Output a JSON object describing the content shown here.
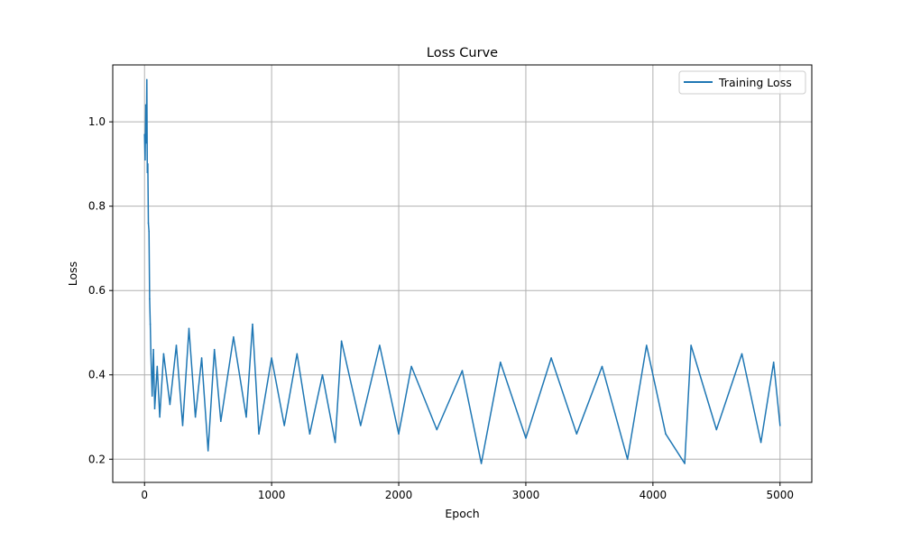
{
  "chart_data": {
    "type": "line",
    "title": "Loss Curve",
    "xlabel": "Epoch",
    "ylabel": "Loss",
    "xlim": [
      -250,
      5250
    ],
    "ylim": [
      0.145,
      1.135
    ],
    "xticks": [
      0,
      1000,
      2000,
      3000,
      4000,
      5000
    ],
    "xtick_labels": [
      "0",
      "1000",
      "2000",
      "3000",
      "4000",
      "5000"
    ],
    "yticks": [
      0.2,
      0.4,
      0.6,
      0.8,
      1.0
    ],
    "ytick_labels": [
      "0.2",
      "0.4",
      "0.6",
      "0.8",
      "1.0"
    ],
    "grid": true,
    "legend_position": "top-right",
    "series": [
      {
        "name": "Training Loss",
        "color": "#1f77b4",
        "points": [
          [
            0,
            0.97
          ],
          [
            5,
            0.91
          ],
          [
            10,
            1.04
          ],
          [
            14,
            0.95
          ],
          [
            18,
            1.1
          ],
          [
            22,
            0.88
          ],
          [
            26,
            0.9
          ],
          [
            30,
            0.76
          ],
          [
            35,
            0.74
          ],
          [
            40,
            0.58
          ],
          [
            45,
            0.52
          ],
          [
            50,
            0.45
          ],
          [
            60,
            0.35
          ],
          [
            70,
            0.46
          ],
          [
            80,
            0.32
          ],
          [
            100,
            0.42
          ],
          [
            120,
            0.3
          ],
          [
            150,
            0.45
          ],
          [
            200,
            0.33
          ],
          [
            250,
            0.47
          ],
          [
            300,
            0.28
          ],
          [
            350,
            0.51
          ],
          [
            400,
            0.3
          ],
          [
            450,
            0.44
          ],
          [
            500,
            0.22
          ],
          [
            550,
            0.46
          ],
          [
            600,
            0.29
          ],
          [
            700,
            0.49
          ],
          [
            800,
            0.3
          ],
          [
            850,
            0.52
          ],
          [
            900,
            0.26
          ],
          [
            1000,
            0.44
          ],
          [
            1100,
            0.28
          ],
          [
            1200,
            0.45
          ],
          [
            1300,
            0.26
          ],
          [
            1400,
            0.4
          ],
          [
            1500,
            0.24
          ],
          [
            1550,
            0.48
          ],
          [
            1700,
            0.28
          ],
          [
            1850,
            0.47
          ],
          [
            2000,
            0.26
          ],
          [
            2100,
            0.42
          ],
          [
            2300,
            0.27
          ],
          [
            2500,
            0.41
          ],
          [
            2650,
            0.19
          ],
          [
            2800,
            0.43
          ],
          [
            3000,
            0.25
          ],
          [
            3200,
            0.44
          ],
          [
            3400,
            0.26
          ],
          [
            3600,
            0.42
          ],
          [
            3800,
            0.2
          ],
          [
            3950,
            0.47
          ],
          [
            4100,
            0.26
          ],
          [
            4250,
            0.19
          ],
          [
            4300,
            0.47
          ],
          [
            4500,
            0.27
          ],
          [
            4700,
            0.45
          ],
          [
            4850,
            0.24
          ],
          [
            4950,
            0.43
          ],
          [
            5000,
            0.28
          ]
        ]
      }
    ]
  }
}
